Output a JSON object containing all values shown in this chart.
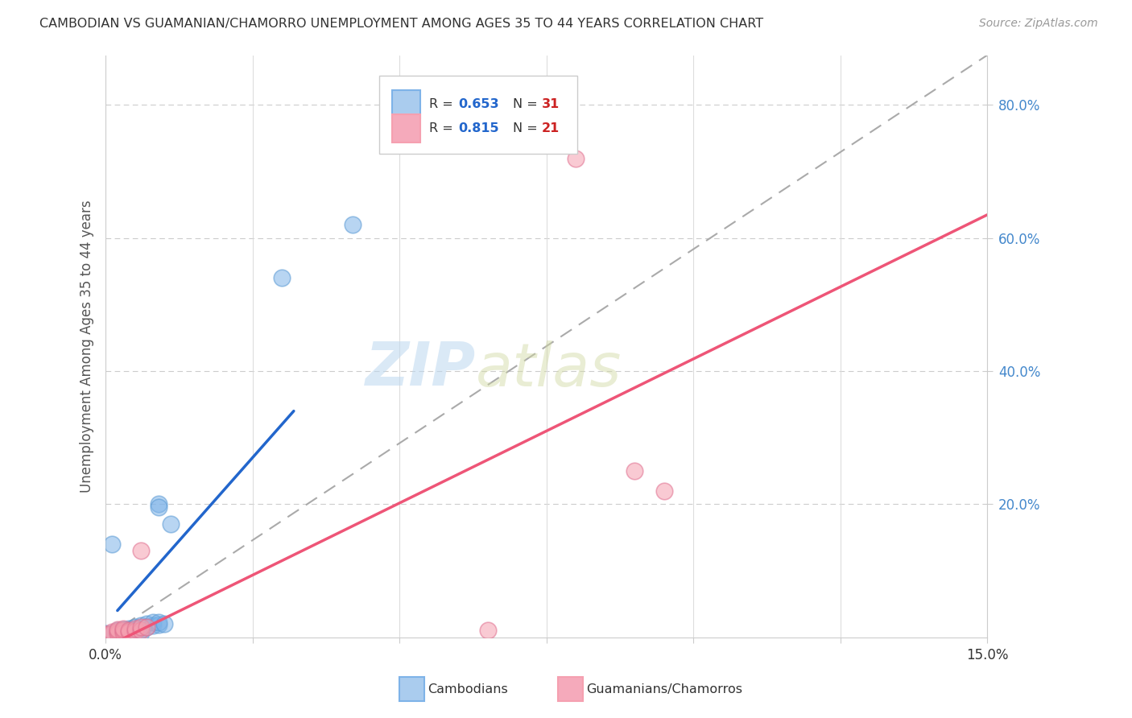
{
  "title": "CAMBODIAN VS GUAMANIAN/CHAMORRO UNEMPLOYMENT AMONG AGES 35 TO 44 YEARS CORRELATION CHART",
  "source": "Source: ZipAtlas.com",
  "ylabel": "Unemployment Among Ages 35 to 44 years",
  "xlim": [
    0.0,
    0.15
  ],
  "ylim": [
    0.0,
    0.875
  ],
  "ytick_positions": [
    0.2,
    0.4,
    0.6,
    0.8
  ],
  "ytick_labels": [
    "20.0%",
    "40.0%",
    "60.0%",
    "80.0%"
  ],
  "xtick_positions": [
    0.0,
    0.025,
    0.05,
    0.075,
    0.1,
    0.125,
    0.15
  ],
  "watermark_zip": "ZIP",
  "watermark_atlas": "atlas",
  "legend_r1": "R = 0.653",
  "legend_n1": "N = 31",
  "legend_r2": "R = 0.815",
  "legend_n2": "N = 21",
  "cambodian_color": "#7EB3E8",
  "cambodian_edge": "#5A9AD4",
  "guamanian_color": "#F5A0B0",
  "guamanian_edge": "#E07090",
  "cambodian_scatter": [
    [
      0.0,
      0.005
    ],
    [
      0.001,
      0.003
    ],
    [
      0.001,
      0.006
    ],
    [
      0.002,
      0.004
    ],
    [
      0.002,
      0.007
    ],
    [
      0.002,
      0.01
    ],
    [
      0.003,
      0.005
    ],
    [
      0.003,
      0.008
    ],
    [
      0.003,
      0.012
    ],
    [
      0.004,
      0.005
    ],
    [
      0.004,
      0.009
    ],
    [
      0.004,
      0.013
    ],
    [
      0.005,
      0.006
    ],
    [
      0.005,
      0.01
    ],
    [
      0.005,
      0.015
    ],
    [
      0.006,
      0.007
    ],
    [
      0.006,
      0.012
    ],
    [
      0.006,
      0.018
    ],
    [
      0.007,
      0.015
    ],
    [
      0.007,
      0.02
    ],
    [
      0.008,
      0.018
    ],
    [
      0.008,
      0.022
    ],
    [
      0.009,
      0.019
    ],
    [
      0.009,
      0.022
    ],
    [
      0.01,
      0.02
    ],
    [
      0.011,
      0.17
    ],
    [
      0.03,
      0.54
    ],
    [
      0.042,
      0.62
    ],
    [
      0.001,
      0.14
    ],
    [
      0.009,
      0.2
    ],
    [
      0.009,
      0.195
    ]
  ],
  "guamanian_scatter": [
    [
      0.0,
      0.004
    ],
    [
      0.001,
      0.005
    ],
    [
      0.001,
      0.008
    ],
    [
      0.002,
      0.005
    ],
    [
      0.002,
      0.009
    ],
    [
      0.002,
      0.012
    ],
    [
      0.003,
      0.007
    ],
    [
      0.003,
      0.01
    ],
    [
      0.003,
      0.013
    ],
    [
      0.004,
      0.008
    ],
    [
      0.004,
      0.011
    ],
    [
      0.005,
      0.009
    ],
    [
      0.005,
      0.013
    ],
    [
      0.006,
      0.01
    ],
    [
      0.006,
      0.015
    ],
    [
      0.006,
      0.13
    ],
    [
      0.007,
      0.015
    ],
    [
      0.08,
      0.72
    ],
    [
      0.09,
      0.25
    ],
    [
      0.095,
      0.22
    ],
    [
      0.065,
      0.01
    ]
  ],
  "cambodian_line_x": [
    0.002,
    0.032
  ],
  "cambodian_line_y": [
    0.04,
    0.34
  ],
  "guamanian_line_x": [
    0.0,
    0.15
  ],
  "guamanian_line_y": [
    -0.015,
    0.635
  ],
  "ref_line_x": [
    0.0,
    0.875
  ],
  "ref_line_y": [
    0.0,
    0.875
  ],
  "background_color": "#FFFFFF",
  "grid_color": "#CCCCCC",
  "title_color": "#333333",
  "axis_label_color": "#555555",
  "right_tick_color": "#4488CC",
  "source_color": "#999999"
}
